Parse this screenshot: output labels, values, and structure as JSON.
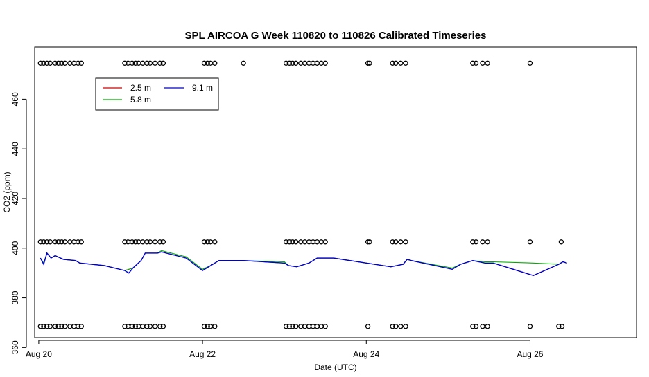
{
  "chart_data": {
    "type": "line",
    "title": "SPL AIRCOA G  Week 110820 to 110826  Calibrated Timeseries",
    "xlabel": "Date (UTC)",
    "ylabel": "CO2 (ppm)",
    "xlim": [
      -0.05,
      7.3
    ],
    "ylim": [
      364,
      481
    ],
    "x_ticks": [
      0,
      2,
      4,
      6
    ],
    "x_tick_labels": [
      "Aug 20",
      "Aug 22",
      "Aug 24",
      "Aug 26"
    ],
    "y_ticks": [
      360,
      380,
      400,
      420,
      440,
      460
    ],
    "y_tick_labels": [
      "360",
      "380",
      "400",
      "420",
      "440",
      "460"
    ],
    "legend_position": "top-left",
    "series": [
      {
        "name": "2.5 m",
        "color": "#cc0000",
        "points": [
          [
            0.02,
            396
          ],
          [
            0.06,
            394
          ],
          [
            0.1,
            398
          ],
          [
            0.15,
            396
          ],
          [
            0.2,
            397
          ],
          [
            0.3,
            395.5
          ],
          [
            0.45,
            395
          ],
          [
            0.5,
            394
          ],
          [
            0.8,
            393
          ],
          [
            1.05,
            391
          ],
          [
            1.15,
            392
          ],
          [
            1.25,
            395
          ],
          [
            1.3,
            398
          ],
          [
            1.45,
            398
          ],
          [
            1.5,
            398.5
          ],
          [
            1.8,
            396
          ],
          [
            2.0,
            391
          ],
          [
            2.1,
            393
          ],
          [
            2.2,
            395
          ],
          [
            2.5,
            395
          ],
          [
            3.0,
            394
          ],
          [
            3.05,
            393
          ],
          [
            3.15,
            392.5
          ],
          [
            3.3,
            394
          ],
          [
            3.4,
            396
          ],
          [
            3.6,
            396
          ],
          [
            4.0,
            394
          ],
          [
            4.3,
            392.5
          ],
          [
            4.45,
            393.5
          ],
          [
            4.5,
            395.5
          ],
          [
            4.55,
            395
          ],
          [
            5.05,
            391.5
          ],
          [
            5.15,
            393.5
          ],
          [
            5.3,
            395
          ],
          [
            5.45,
            394
          ],
          [
            5.55,
            394
          ],
          [
            6.04,
            389
          ],
          [
            6.35,
            393.5
          ],
          [
            6.4,
            394.5
          ],
          [
            6.45,
            394
          ]
        ]
      },
      {
        "name": "5.8 m",
        "color": "#00aa00",
        "points": [
          [
            0.02,
            396
          ],
          [
            0.06,
            394
          ],
          [
            0.1,
            398
          ],
          [
            0.15,
            396
          ],
          [
            0.2,
            397
          ],
          [
            0.3,
            395.5
          ],
          [
            0.45,
            395
          ],
          [
            0.5,
            394
          ],
          [
            0.8,
            393
          ],
          [
            1.05,
            391
          ],
          [
            1.15,
            392
          ],
          [
            1.25,
            395
          ],
          [
            1.3,
            398
          ],
          [
            1.45,
            398
          ],
          [
            1.5,
            399
          ],
          [
            1.8,
            396.5
          ],
          [
            2.0,
            391.5
          ],
          [
            2.1,
            393
          ],
          [
            2.2,
            395
          ],
          [
            2.5,
            395
          ],
          [
            3.0,
            394.5
          ],
          [
            3.05,
            393
          ],
          [
            3.15,
            392.5
          ],
          [
            3.3,
            394
          ],
          [
            3.4,
            396
          ],
          [
            3.6,
            396
          ],
          [
            4.0,
            394
          ],
          [
            4.3,
            392.5
          ],
          [
            4.45,
            393.5
          ],
          [
            4.5,
            395.5
          ],
          [
            4.55,
            395
          ],
          [
            5.05,
            392
          ],
          [
            5.15,
            393.5
          ],
          [
            5.3,
            395
          ],
          [
            5.45,
            394.5
          ],
          [
            5.55,
            394.5
          ],
          [
            6.04,
            394
          ],
          [
            6.35,
            393.5
          ],
          [
            6.4,
            394.5
          ],
          [
            6.45,
            394
          ]
        ]
      },
      {
        "name": "9.1 m",
        "color": "#0000cc",
        "points": [
          [
            0.02,
            396
          ],
          [
            0.06,
            393.5
          ],
          [
            0.1,
            398
          ],
          [
            0.15,
            396
          ],
          [
            0.2,
            397
          ],
          [
            0.3,
            395.5
          ],
          [
            0.45,
            395
          ],
          [
            0.5,
            394
          ],
          [
            0.8,
            393
          ],
          [
            1.05,
            391
          ],
          [
            1.1,
            390
          ],
          [
            1.15,
            392
          ],
          [
            1.25,
            395
          ],
          [
            1.3,
            398
          ],
          [
            1.45,
            398
          ],
          [
            1.5,
            398.5
          ],
          [
            1.8,
            396
          ],
          [
            2.0,
            391
          ],
          [
            2.1,
            393
          ],
          [
            2.2,
            395
          ],
          [
            2.5,
            395
          ],
          [
            3.0,
            394
          ],
          [
            3.05,
            393
          ],
          [
            3.15,
            392.5
          ],
          [
            3.3,
            394
          ],
          [
            3.4,
            396
          ],
          [
            3.6,
            396
          ],
          [
            4.0,
            394
          ],
          [
            4.3,
            392.5
          ],
          [
            4.45,
            393.5
          ],
          [
            4.5,
            395.5
          ],
          [
            4.55,
            395
          ],
          [
            5.05,
            391.5
          ],
          [
            5.15,
            393.5
          ],
          [
            5.3,
            395
          ],
          [
            5.45,
            394
          ],
          [
            5.55,
            394
          ],
          [
            6.04,
            389
          ],
          [
            6.35,
            393.5
          ],
          [
            6.4,
            394.5
          ],
          [
            6.45,
            394
          ]
        ]
      }
    ],
    "calibration_points": [
      {
        "level": 474.5,
        "x": [
          0.02,
          0.06,
          0.1,
          0.14,
          0.2,
          0.24,
          0.28,
          0.32,
          0.38,
          0.43,
          0.48,
          0.52,
          1.05,
          1.09,
          1.14,
          1.18,
          1.22,
          1.27,
          1.32,
          1.36,
          1.42,
          1.48,
          1.52,
          2.02,
          2.06,
          2.1,
          2.15,
          2.5,
          3.02,
          3.06,
          3.1,
          3.14,
          3.2,
          3.25,
          3.3,
          3.35,
          3.4,
          3.45,
          3.5,
          4.02,
          4.04,
          4.32,
          4.36,
          4.42,
          4.48,
          5.3,
          5.34,
          5.42,
          5.48,
          6.0
        ]
      },
      {
        "level": 402.5,
        "x": [
          0.02,
          0.06,
          0.1,
          0.14,
          0.2,
          0.24,
          0.28,
          0.32,
          0.38,
          0.43,
          0.48,
          0.52,
          1.05,
          1.09,
          1.14,
          1.18,
          1.22,
          1.27,
          1.32,
          1.36,
          1.42,
          1.48,
          1.52,
          2.02,
          2.06,
          2.1,
          2.15,
          3.02,
          3.06,
          3.1,
          3.14,
          3.2,
          3.25,
          3.3,
          3.35,
          3.4,
          3.45,
          3.5,
          4.02,
          4.04,
          4.32,
          4.36,
          4.42,
          4.48,
          5.3,
          5.34,
          5.42,
          5.48,
          6.0,
          6.38
        ]
      },
      {
        "level": 368.5,
        "x": [
          0.02,
          0.06,
          0.1,
          0.14,
          0.2,
          0.24,
          0.28,
          0.32,
          0.38,
          0.43,
          0.48,
          0.52,
          1.05,
          1.09,
          1.14,
          1.18,
          1.22,
          1.27,
          1.32,
          1.36,
          1.42,
          1.48,
          1.52,
          2.02,
          2.06,
          2.1,
          2.15,
          3.02,
          3.06,
          3.1,
          3.14,
          3.2,
          3.25,
          3.3,
          3.35,
          3.4,
          3.45,
          3.5,
          4.02,
          4.32,
          4.36,
          4.42,
          4.48,
          5.3,
          5.34,
          5.42,
          5.48,
          6.0,
          6.35,
          6.39
        ]
      }
    ]
  }
}
